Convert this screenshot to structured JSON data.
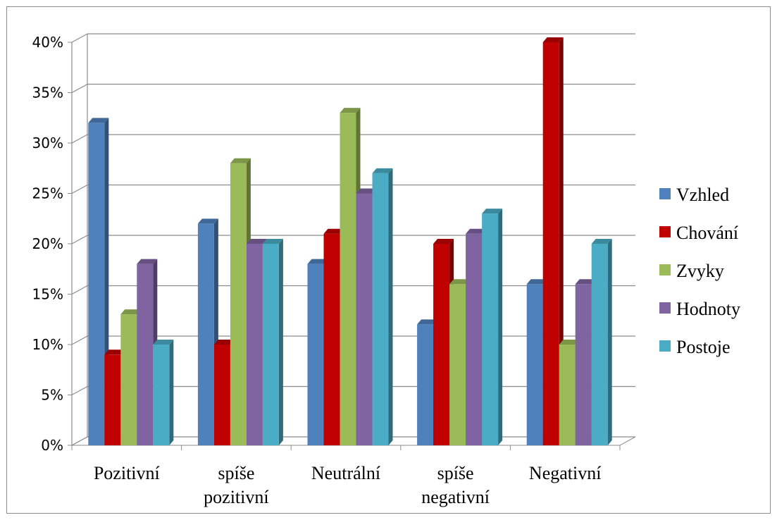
{
  "chart_data": {
    "type": "bar",
    "three_d": true,
    "categories": [
      [
        "Pozitivní"
      ],
      [
        "spíše",
        "pozitivní"
      ],
      [
        "Neutrální"
      ],
      [
        "spíše",
        "negativní"
      ],
      [
        "Negativní"
      ]
    ],
    "series": [
      {
        "name": "Vzhled",
        "values": [
          32,
          22,
          18,
          12,
          16
        ],
        "color": "#4F81BD"
      },
      {
        "name": "Chování",
        "values": [
          9,
          10,
          21,
          20,
          40
        ],
        "color": "#C00000"
      },
      {
        "name": "Zvyky",
        "values": [
          13,
          28,
          33,
          16,
          10
        ],
        "color": "#9BBB59"
      },
      {
        "name": "Hodnoty",
        "values": [
          18,
          20,
          25,
          21,
          16
        ],
        "color": "#8064A2"
      },
      {
        "name": "Postoje",
        "values": [
          10,
          20,
          27,
          23,
          20
        ],
        "color": "#4BACC6"
      }
    ],
    "y_ticks": [
      "0%",
      "5%",
      "10%",
      "15%",
      "20%",
      "25%",
      "30%",
      "35%",
      "40%"
    ],
    "ylim": [
      0,
      40
    ],
    "y_unit": "%",
    "grid": true,
    "legend_position": "right",
    "title": "",
    "xlabel": "",
    "ylabel": ""
  }
}
